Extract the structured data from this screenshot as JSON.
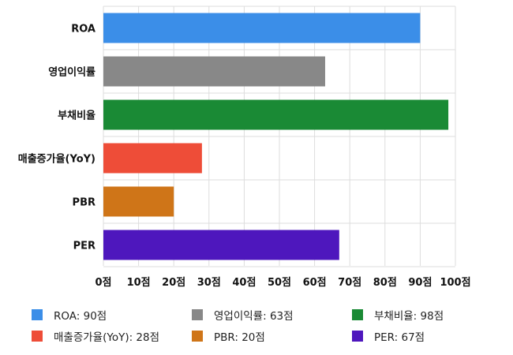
{
  "chart_data": {
    "type": "bar",
    "orientation": "horizontal",
    "categories": [
      "ROA",
      "영업이익률",
      "부채비율",
      "매출증가율(YoY)",
      "PBR",
      "PER"
    ],
    "values": [
      90,
      63,
      98,
      28,
      20,
      67
    ],
    "colors": [
      "#3b8ee8",
      "#888888",
      "#1a8a35",
      "#ee4d38",
      "#cf7518",
      "#4e17bd"
    ],
    "xlim": [
      0,
      100
    ],
    "x_ticks": [
      0,
      10,
      20,
      30,
      40,
      50,
      60,
      70,
      80,
      90,
      100
    ],
    "x_tick_labels": [
      "0점",
      "10점",
      "20점",
      "30점",
      "40점",
      "50점",
      "60점",
      "70점",
      "80점",
      "90점",
      "100점"
    ],
    "grid": true,
    "legend_position": "bottom",
    "legend": [
      {
        "label": "ROA: 90점",
        "color": "#3b8ee8"
      },
      {
        "label": "영업이익률: 63점",
        "color": "#888888"
      },
      {
        "label": "부채비율: 98점",
        "color": "#1a8a35"
      },
      {
        "label": "매출증가율(YoY): 28점",
        "color": "#ee4d38"
      },
      {
        "label": "PBR: 20점",
        "color": "#cf7518"
      },
      {
        "label": "PER: 67점",
        "color": "#4e17bd"
      }
    ]
  }
}
